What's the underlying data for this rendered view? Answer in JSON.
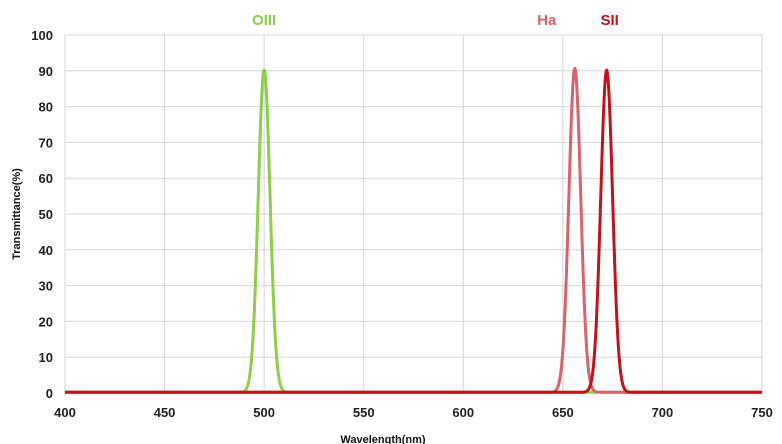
{
  "chart_data": {
    "type": "line",
    "title": "",
    "xlabel": "Wavelength(nm)",
    "ylabel": "Transmittance(%)",
    "xlim": [
      400,
      750
    ],
    "ylim": [
      0,
      100
    ],
    "xticks": [
      400,
      450,
      500,
      550,
      600,
      650,
      700,
      750
    ],
    "yticks": [
      0,
      10,
      20,
      30,
      40,
      50,
      60,
      70,
      80,
      90,
      100
    ],
    "grid": true,
    "legend": "labels above peaks",
    "series": [
      {
        "name": "OIII",
        "color": "#8dcf4a",
        "center": 500,
        "fwhm": 7,
        "peak": 90
      },
      {
        "name": "Ha",
        "color": "#d9636b",
        "center": 656,
        "fwhm": 7,
        "peak": 90.5
      },
      {
        "name": "SII",
        "color": "#c0141d",
        "center": 672,
        "fwhm": 7,
        "peak": 90
      }
    ]
  }
}
